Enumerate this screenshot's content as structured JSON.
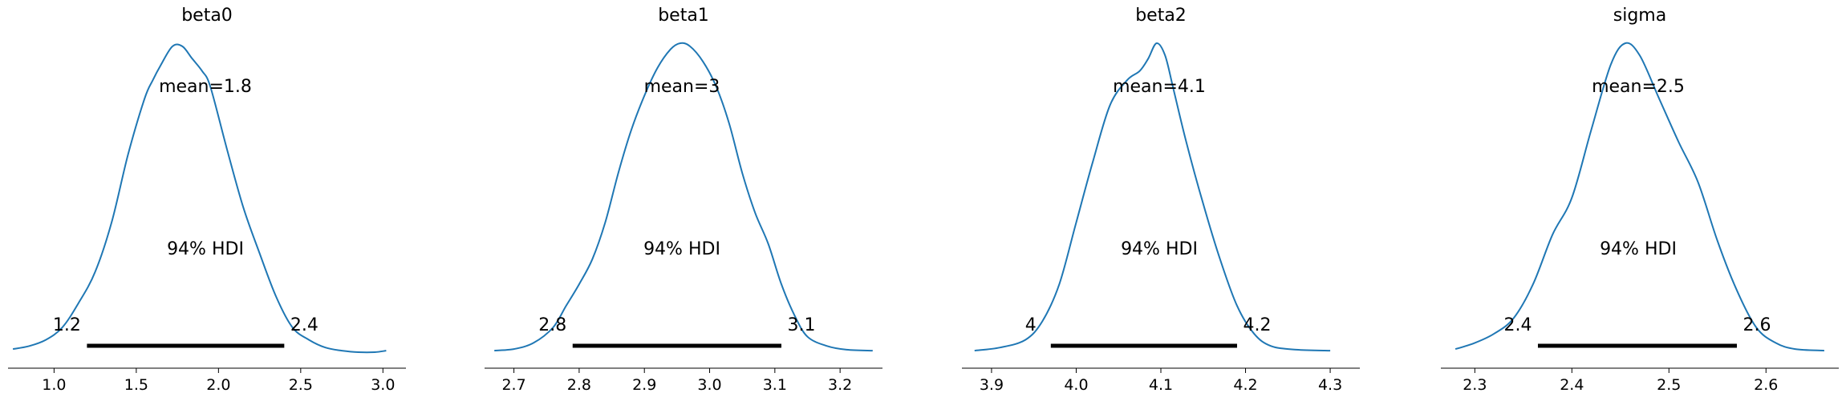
{
  "chart_data": [
    {
      "type": "line",
      "title": "beta0",
      "xlim": [
        0.72,
        3.14
      ],
      "xticks": [
        "1.0",
        "1.5",
        "2.0",
        "2.5",
        "3.0"
      ],
      "xtick_values": [
        1.0,
        1.5,
        2.0,
        2.5,
        3.0
      ],
      "mean_label": "mean=1.8",
      "hdi_label": "94% HDI",
      "hdi": [
        1.2,
        2.4
      ],
      "hdi_low_label": "1.2",
      "hdi_high_label": "2.4",
      "series": [
        {
          "color": "#1f77b4",
          "x": [
            0.75,
            0.85,
            0.95,
            1.05,
            1.15,
            1.25,
            1.35,
            1.45,
            1.55,
            1.6,
            1.65,
            1.72,
            1.78,
            1.84,
            1.9,
            1.95,
            2.05,
            2.15,
            2.25,
            2.35,
            2.45,
            2.55,
            2.65,
            2.75,
            2.85,
            2.95,
            3.02
          ],
          "y": [
            0.01,
            0.02,
            0.04,
            0.08,
            0.16,
            0.26,
            0.42,
            0.64,
            0.82,
            0.88,
            0.93,
            0.99,
            0.99,
            0.95,
            0.91,
            0.86,
            0.66,
            0.47,
            0.32,
            0.18,
            0.08,
            0.04,
            0.015,
            0.005,
            0.0,
            0.0,
            0.005
          ]
        }
      ]
    },
    {
      "type": "line",
      "title": "beta1",
      "xlim": [
        2.655,
        3.265
      ],
      "xticks": [
        "2.7",
        "2.8",
        "2.9",
        "3.0",
        "3.1",
        "3.2"
      ],
      "xtick_values": [
        2.7,
        2.8,
        2.9,
        3.0,
        3.1,
        3.2
      ],
      "mean_label": "mean=3",
      "hdi_label": "94% HDI",
      "hdi": [
        2.79,
        3.11
      ],
      "hdi_low_label": "2.8",
      "hdi_high_label": "3.1",
      "series": [
        {
          "color": "#1f77b4",
          "x": [
            2.67,
            2.7,
            2.73,
            2.76,
            2.78,
            2.8,
            2.82,
            2.84,
            2.86,
            2.88,
            2.9,
            2.92,
            2.94,
            2.955,
            2.97,
            2.99,
            3.01,
            3.03,
            3.05,
            3.07,
            3.09,
            3.11,
            3.13,
            3.15,
            3.18,
            3.21,
            3.25
          ],
          "y": [
            0.005,
            0.01,
            0.03,
            0.08,
            0.15,
            0.22,
            0.3,
            0.42,
            0.58,
            0.72,
            0.83,
            0.92,
            0.98,
            1.0,
            0.99,
            0.94,
            0.86,
            0.74,
            0.58,
            0.45,
            0.35,
            0.22,
            0.12,
            0.05,
            0.02,
            0.008,
            0.005
          ]
        }
      ]
    },
    {
      "type": "line",
      "title": "beta2",
      "xlim": [
        3.865,
        4.335
      ],
      "xticks": [
        "3.9",
        "4.0",
        "4.1",
        "4.2",
        "4.3"
      ],
      "xtick_values": [
        3.9,
        4.0,
        4.1,
        4.2,
        4.3
      ],
      "mean_label": "mean=4.1",
      "hdi_label": "94% HDI",
      "hdi": [
        3.97,
        4.19
      ],
      "hdi_low_label": "4",
      "hdi_high_label": "4.2",
      "series": [
        {
          "color": "#1f77b4",
          "x": [
            3.88,
            3.91,
            3.94,
            3.96,
            3.98,
            4.0,
            4.02,
            4.04,
            4.06,
            4.075,
            4.085,
            4.095,
            4.105,
            4.115,
            4.13,
            4.15,
            4.17,
            4.19,
            4.21,
            4.23,
            4.26,
            4.3
          ],
          "y": [
            0.005,
            0.015,
            0.04,
            0.1,
            0.22,
            0.42,
            0.62,
            0.8,
            0.88,
            0.91,
            0.95,
            1.0,
            0.96,
            0.85,
            0.68,
            0.48,
            0.3,
            0.15,
            0.06,
            0.02,
            0.008,
            0.005
          ]
        }
      ]
    },
    {
      "type": "line",
      "title": "sigma",
      "xlim": [
        2.265,
        2.675
      ],
      "xticks": [
        "2.3",
        "2.4",
        "2.5",
        "2.6"
      ],
      "xtick_values": [
        2.3,
        2.4,
        2.5,
        2.6
      ],
      "mean_label": "mean=2.5",
      "hdi_label": "94% HDI",
      "hdi": [
        2.365,
        2.57
      ],
      "hdi_low_label": "2.4",
      "hdi_high_label": "2.6",
      "series": [
        {
          "color": "#1f77b4",
          "x": [
            2.28,
            2.3,
            2.32,
            2.34,
            2.36,
            2.38,
            2.4,
            2.42,
            2.44,
            2.455,
            2.47,
            2.49,
            2.51,
            2.53,
            2.55,
            2.57,
            2.59,
            2.61,
            2.63,
            2.66
          ],
          "y": [
            0.01,
            0.03,
            0.06,
            0.11,
            0.22,
            0.38,
            0.5,
            0.72,
            0.93,
            1.0,
            0.96,
            0.82,
            0.68,
            0.55,
            0.36,
            0.2,
            0.08,
            0.03,
            0.01,
            0.005
          ]
        }
      ]
    }
  ]
}
